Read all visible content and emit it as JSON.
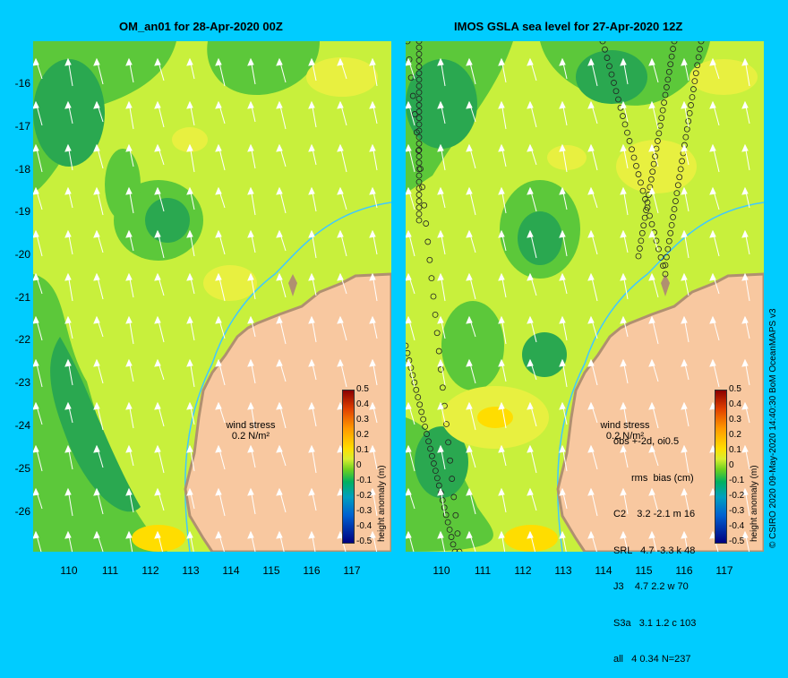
{
  "left_panel": {
    "title": "OM_an01 for 28-Apr-2020 00Z",
    "wind_label": "wind stress",
    "wind_value": "0.2 N/m²"
  },
  "right_panel": {
    "title": "IMOS GSLA sea level  for 27-Apr-2020 12Z",
    "wind_label": "wind stress",
    "wind_value": "0.2 N/m²",
    "stats_header": "obs +-2d, oi0.5",
    "stats_sub": "rms  bias (cm)",
    "stats_rows": [
      "C2    3.2 -2.1 m 16",
      "SRL   4.7 -3.3 k 48",
      "J3    4.7 2.2 w 70",
      "S3a   3.1 1.2 c 103",
      "all   4 0.34 N=237"
    ]
  },
  "y_ticks": [
    "-16",
    "-17",
    "-18",
    "-19",
    "-20",
    "-21",
    "-22",
    "-23",
    "-24",
    "-25",
    "-26"
  ],
  "x_ticks": [
    "110",
    "111",
    "112",
    "113",
    "114",
    "115",
    "116",
    "117"
  ],
  "colorbar": {
    "title": "height anomaly (m)",
    "ticks": [
      "0.5",
      "0.4",
      "0.3",
      "0.2",
      "0.1",
      "0",
      "-0.1",
      "-0.2",
      "-0.3",
      "-0.4",
      "-0.5"
    ],
    "colors": [
      "#8b0000",
      "#e04000",
      "#ff9900",
      "#ffdd00",
      "#6cd020",
      "#00b060",
      "#00a0c0",
      "#0060d0",
      "#000080"
    ]
  },
  "credit": "© CSIRO 2020  09-May-2020 14:40:30 BoM OceanMAPS v3",
  "map_colors": {
    "background": "#00ccff",
    "sea_base": "#c8f03c",
    "sea_green": "#5cc83a",
    "sea_dark": "#2aa850",
    "sea_yellow": "#e8f040",
    "land": "#f8c8a0",
    "coast": "#b09070",
    "contour": "#40c8ff"
  },
  "icons": [
    "wind-arrow-icon",
    "satellite-track-icon"
  ]
}
